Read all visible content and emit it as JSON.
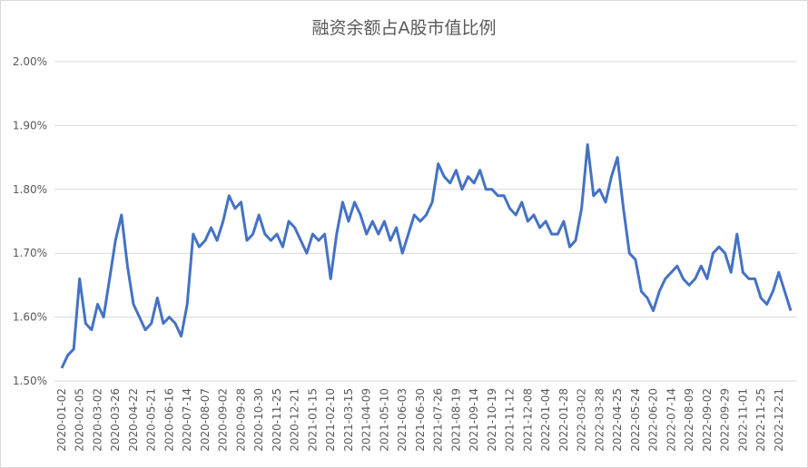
{
  "chart_data": {
    "type": "line",
    "title": "融资余额占A股市值比例",
    "color": "#4472c4",
    "grid": true,
    "ylim": [
      1.5,
      2.0
    ],
    "yticks": [
      {
        "value": 1.5,
        "label": "1.50%"
      },
      {
        "value": 1.6,
        "label": "1.60%"
      },
      {
        "value": 1.7,
        "label": "1.70%"
      },
      {
        "value": 1.8,
        "label": "1.80%"
      },
      {
        "value": 1.9,
        "label": "1.90%"
      },
      {
        "value": 2.0,
        "label": "2.00%"
      }
    ],
    "categories": [
      "2020-01-02",
      null,
      null,
      "2020-02-05",
      null,
      null,
      "2020-03-02",
      null,
      null,
      "2020-03-26",
      null,
      null,
      "2020-04-22",
      null,
      null,
      "2020-05-21",
      null,
      null,
      "2020-06-16",
      null,
      null,
      "2020-07-14",
      null,
      null,
      "2020-08-07",
      null,
      null,
      "2020-09-02",
      null,
      null,
      "2020-09-28",
      null,
      null,
      "2020-10-30",
      null,
      null,
      "2020-11-25",
      null,
      null,
      "2020-12-21",
      null,
      null,
      "2021-01-15",
      null,
      null,
      "2021-02-10",
      null,
      null,
      "2021-03-15",
      null,
      null,
      "2021-04-09",
      null,
      null,
      "2021-05-10",
      null,
      null,
      "2021-06-03",
      null,
      null,
      "2021-06-30",
      null,
      null,
      "2021-07-26",
      null,
      null,
      "2021-08-19",
      null,
      null,
      "2021-09-14",
      null,
      null,
      "2021-10-19",
      null,
      null,
      "2021-11-12",
      null,
      null,
      "2021-12-08",
      null,
      null,
      "2022-01-04",
      null,
      null,
      "2022-01-28",
      null,
      null,
      "2022-03-02",
      null,
      null,
      "2022-03-28",
      null,
      null,
      "2022-04-25",
      null,
      null,
      "2022-05-24",
      null,
      null,
      "2022-06-20",
      null,
      null,
      "2022-07-14",
      null,
      null,
      "2022-08-09",
      null,
      null,
      "2022-09-02",
      null,
      null,
      "2022-09-29",
      null,
      null,
      "2022-11-01",
      null,
      null,
      "2022-11-25",
      null,
      null,
      "2022-12-21",
      null,
      null
    ],
    "values": [
      1.52,
      1.54,
      1.55,
      1.66,
      1.59,
      1.58,
      1.62,
      1.6,
      1.66,
      1.72,
      1.76,
      1.68,
      1.62,
      1.6,
      1.58,
      1.59,
      1.63,
      1.59,
      1.6,
      1.59,
      1.57,
      1.62,
      1.73,
      1.71,
      1.72,
      1.74,
      1.72,
      1.75,
      1.79,
      1.77,
      1.78,
      1.72,
      1.73,
      1.76,
      1.73,
      1.72,
      1.73,
      1.71,
      1.75,
      1.74,
      1.72,
      1.7,
      1.73,
      1.72,
      1.73,
      1.66,
      1.73,
      1.78,
      1.75,
      1.78,
      1.76,
      1.73,
      1.75,
      1.73,
      1.75,
      1.72,
      1.74,
      1.7,
      1.73,
      1.76,
      1.75,
      1.76,
      1.78,
      1.84,
      1.82,
      1.81,
      1.83,
      1.8,
      1.82,
      1.81,
      1.83,
      1.8,
      1.8,
      1.79,
      1.79,
      1.77,
      1.76,
      1.78,
      1.75,
      1.76,
      1.74,
      1.75,
      1.73,
      1.73,
      1.75,
      1.71,
      1.72,
      1.77,
      1.87,
      1.79,
      1.8,
      1.78,
      1.82,
      1.85,
      1.77,
      1.7,
      1.69,
      1.64,
      1.63,
      1.61,
      1.64,
      1.66,
      1.67,
      1.68,
      1.66,
      1.65,
      1.66,
      1.68,
      1.66,
      1.7,
      1.71,
      1.7,
      1.67,
      1.73,
      1.67,
      1.66,
      1.66,
      1.63,
      1.62,
      1.64,
      1.67,
      1.64,
      1.61
    ]
  }
}
